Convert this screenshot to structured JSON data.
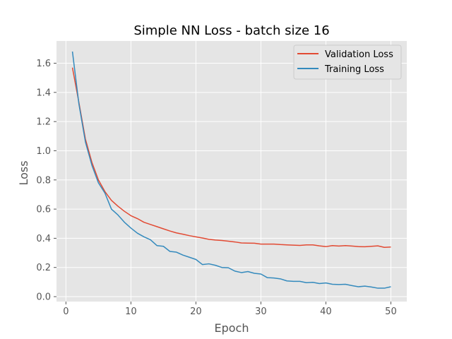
{
  "chart_data": {
    "type": "line",
    "title": "Simple NN Loss - batch size 16",
    "xlabel": "Epoch",
    "ylabel": "Loss",
    "xlim": [
      -1.45,
      52.45
    ],
    "ylim": [
      -0.0337,
      1.7525
    ],
    "xticks": [
      0,
      10,
      20,
      30,
      40,
      50
    ],
    "yticks": [
      0.0,
      0.2,
      0.4,
      0.6,
      0.8,
      1.0,
      1.2,
      1.4,
      1.6
    ],
    "ytick_labels": [
      "0.0",
      "0.2",
      "0.4",
      "0.6",
      "0.8",
      "1.0",
      "1.2",
      "1.4",
      "1.6"
    ],
    "grid": true,
    "legend_position": "top-right",
    "x": [
      1,
      2,
      3,
      4,
      5,
      6,
      7,
      8,
      9,
      10,
      11,
      12,
      13,
      14,
      15,
      16,
      17,
      18,
      19,
      20,
      21,
      22,
      23,
      24,
      25,
      26,
      27,
      28,
      29,
      30,
      31,
      32,
      33,
      34,
      35,
      36,
      37,
      38,
      39,
      40,
      41,
      42,
      43,
      44,
      45,
      46,
      47,
      48,
      49,
      50
    ],
    "series": [
      {
        "name": "Validation Loss",
        "color": "#e24a33",
        "values": [
          1.57,
          1.33,
          1.08,
          0.92,
          0.8,
          0.72,
          0.66,
          0.62,
          0.585,
          0.555,
          0.535,
          0.51,
          0.495,
          0.48,
          0.465,
          0.45,
          0.437,
          0.428,
          0.418,
          0.41,
          0.402,
          0.393,
          0.388,
          0.385,
          0.38,
          0.375,
          0.368,
          0.367,
          0.366,
          0.36,
          0.36,
          0.36,
          0.357,
          0.355,
          0.353,
          0.351,
          0.355,
          0.355,
          0.348,
          0.343,
          0.35,
          0.347,
          0.35,
          0.347,
          0.343,
          0.342,
          0.345,
          0.348,
          0.338,
          0.34
        ]
      },
      {
        "name": "Training Loss",
        "color": "#348abd",
        "values": [
          1.68,
          1.32,
          1.06,
          0.9,
          0.78,
          0.71,
          0.6,
          0.56,
          0.51,
          0.47,
          0.435,
          0.41,
          0.39,
          0.35,
          0.345,
          0.31,
          0.305,
          0.285,
          0.27,
          0.255,
          0.22,
          0.225,
          0.215,
          0.2,
          0.198,
          0.175,
          0.165,
          0.172,
          0.16,
          0.155,
          0.13,
          0.128,
          0.122,
          0.108,
          0.105,
          0.105,
          0.096,
          0.098,
          0.09,
          0.094,
          0.085,
          0.083,
          0.085,
          0.076,
          0.068,
          0.072,
          0.066,
          0.058,
          0.058,
          0.068
        ]
      }
    ]
  }
}
